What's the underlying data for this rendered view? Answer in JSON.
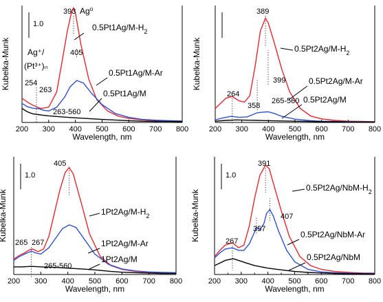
{
  "chart_data": [
    {
      "type": "line",
      "xlabel": "Wavelength, nm",
      "ylabel": "Kubelka-Munk",
      "xlim": [
        200,
        800
      ],
      "xticks": [
        "200",
        "300",
        "400",
        "500",
        "600",
        "700",
        "800"
      ],
      "scale_bar_label": "1.0",
      "scale_bar_value": 1.0,
      "ylim": [
        0,
        4.8
      ],
      "peak_labels": [
        "393",
        "405",
        "254",
        "263",
        "263-560"
      ],
      "annotations": [
        "Ag⁰",
        "Ag⁺/",
        "(Pt³⁺)ₙ"
      ],
      "series": [
        {
          "name": "0.5Pt1Ag/M-H2",
          "label": "0.5Pt1Ag/M-H",
          "label_sub": "2",
          "color": "#e8262e",
          "x": [
            200,
            220,
            240,
            254,
            270,
            300,
            330,
            350,
            370,
            385,
            393,
            400,
            420,
            450,
            480,
            520,
            560,
            600,
            650,
            700,
            750,
            800
          ],
          "y": [
            0.95,
            0.8,
            0.68,
            0.62,
            0.55,
            0.6,
            1.2,
            2.4,
            3.6,
            4.3,
            4.5,
            4.3,
            3.1,
            1.7,
            0.9,
            0.45,
            0.25,
            0.16,
            0.1,
            0.07,
            0.05,
            0.04
          ]
        },
        {
          "name": "0.5Pt1Ag/M-Ar",
          "label": "0.5Pt1Ag/M-Ar",
          "color": "#2d50d6",
          "x": [
            200,
            220,
            240,
            254,
            263,
            280,
            300,
            330,
            360,
            380,
            405,
            430,
            460,
            500,
            550,
            600,
            650,
            700,
            750,
            800
          ],
          "y": [
            0.75,
            0.62,
            0.56,
            0.55,
            0.54,
            0.48,
            0.45,
            0.6,
            1.0,
            1.4,
            1.65,
            1.55,
            1.15,
            0.7,
            0.35,
            0.2,
            0.12,
            0.09,
            0.07,
            0.06
          ]
        },
        {
          "name": "0.5Pt1Ag/M",
          "label": "0.5Pt1Ag/M",
          "color": "#000000",
          "x": [
            200,
            220,
            240,
            260,
            280,
            300,
            350,
            400,
            450,
            500,
            560,
            600,
            650,
            700,
            750,
            800
          ],
          "y": [
            0.55,
            0.42,
            0.34,
            0.31,
            0.28,
            0.26,
            0.22,
            0.18,
            0.15,
            0.12,
            0.09,
            0.07,
            0.05,
            0.04,
            0.04,
            0.03
          ]
        }
      ]
    },
    {
      "type": "line",
      "xlabel": "Wavelength, nm",
      "ylabel": "Kubelka-Munk",
      "xlim": [
        200,
        800
      ],
      "xticks": [
        "200",
        "300",
        "400",
        "500",
        "600",
        "700",
        "800"
      ],
      "scale_bar_label": "",
      "scale_bar_value": 1.0,
      "ylim": [
        0,
        4.8
      ],
      "peak_labels": [
        "389",
        "264",
        "358",
        "399",
        "265-560"
      ],
      "annotations": [],
      "series": [
        {
          "name": "0.5Pt2Ag/M-H2",
          "label": "0.5Pt2Ag/M-H",
          "label_sub": "2",
          "color": "#e8262e",
          "x": [
            200,
            220,
            240,
            264,
            290,
            310,
            330,
            350,
            370,
            389,
            400,
            420,
            450,
            480,
            520,
            560,
            600,
            650,
            700,
            750,
            800
          ],
          "y": [
            0.55,
            0.75,
            0.95,
            1.02,
            0.85,
            0.8,
            1.05,
            2.2,
            3.6,
            4.1,
            3.9,
            3.2,
            2.1,
            1.2,
            0.55,
            0.25,
            0.14,
            0.08,
            0.05,
            0.04,
            0.03
          ]
        },
        {
          "name": "0.5Pt2Ag/M-Ar",
          "label": "0.5Pt2Ag/M-Ar",
          "color": "#2d50d6",
          "x": [
            200,
            230,
            260,
            290,
            320,
            340,
            358,
            375,
            399,
            420,
            450,
            500,
            560,
            600,
            650,
            700,
            750,
            800
          ],
          "y": [
            0.1,
            0.18,
            0.24,
            0.2,
            0.22,
            0.3,
            0.38,
            0.4,
            0.42,
            0.36,
            0.24,
            0.13,
            0.07,
            0.05,
            0.04,
            0.03,
            0.03,
            0.02
          ]
        },
        {
          "name": "0.5Pt2Ag/M",
          "label": "0.5Pt2Ag/M",
          "color": "#000000",
          "x": [
            200,
            240,
            280,
            320,
            360,
            400,
            450,
            500,
            560,
            600,
            650,
            700,
            750,
            800
          ],
          "y": [
            0.05,
            0.08,
            0.1,
            0.09,
            0.08,
            0.07,
            0.06,
            0.05,
            0.04,
            0.03,
            0.03,
            0.02,
            0.02,
            0.02
          ]
        }
      ]
    },
    {
      "type": "line",
      "xlabel": "Wavelength, nm",
      "ylabel": "Kubelka-Munk",
      "xlim": [
        200,
        800
      ],
      "xticks": [
        "200",
        "300",
        "400",
        "500",
        "600",
        "700",
        "800"
      ],
      "scale_bar_label": "1.0",
      "scale_bar_value": 1.0,
      "ylim": [
        0,
        4.8
      ],
      "peak_labels": [
        "405",
        "265",
        "267",
        "265-560"
      ],
      "annotations": [],
      "series": [
        {
          "name": "1Pt2Ag/M-H2",
          "label": "1Pt2Ag/M-H",
          "label_sub": "2",
          "color": "#e8262e",
          "x": [
            200,
            220,
            240,
            260,
            270,
            290,
            310,
            330,
            350,
            370,
            390,
            405,
            420,
            450,
            480,
            520,
            560,
            600,
            650,
            700,
            750,
            800
          ],
          "y": [
            0.6,
            0.75,
            0.85,
            0.98,
            1.0,
            0.9,
            1.0,
            1.5,
            2.4,
            3.3,
            4.0,
            4.2,
            3.95,
            2.8,
            1.6,
            0.7,
            0.35,
            0.2,
            0.12,
            0.08,
            0.06,
            0.05
          ]
        },
        {
          "name": "1Pt2Ag/M-Ar",
          "label": "1Pt2Ag/M-Ar",
          "color": "#2d50d6",
          "x": [
            200,
            220,
            240,
            265,
            280,
            300,
            330,
            360,
            380,
            405,
            430,
            460,
            500,
            550,
            600,
            650,
            700,
            750,
            800
          ],
          "y": [
            0.55,
            0.7,
            0.8,
            0.92,
            0.85,
            0.8,
            1.05,
            1.5,
            1.8,
            1.95,
            1.85,
            1.4,
            0.8,
            0.4,
            0.22,
            0.14,
            0.1,
            0.08,
            0.07
          ]
        },
        {
          "name": "1Pt2Ag/M",
          "label": "1Pt2Ag/M",
          "color": "#000000",
          "x": [
            200,
            230,
            265,
            300,
            350,
            400,
            450,
            500,
            560,
            600,
            650,
            700,
            750,
            800
          ],
          "y": [
            0.3,
            0.3,
            0.32,
            0.3,
            0.28,
            0.25,
            0.22,
            0.18,
            0.12,
            0.09,
            0.07,
            0.05,
            0.04,
            0.04
          ]
        }
      ]
    },
    {
      "type": "line",
      "xlabel": "Wavelength, nm",
      "ylabel": "Kubelka-Munk",
      "xlim": [
        200,
        800
      ],
      "xticks": [
        "200",
        "250",
        "300",
        "350",
        "400",
        "450",
        "500",
        "550",
        "600",
        "650",
        "700",
        "750",
        "800"
      ],
      "scale_bar_label": "1.0",
      "scale_bar_value": 1.0,
      "ylim": [
        0,
        4.8
      ],
      "peak_labels": [
        "391",
        "407",
        "357",
        "267"
      ],
      "annotations": [],
      "series": [
        {
          "name": "0.5Pt2Ag/NbM-H2",
          "label": "0.5Pt2Ag/NbM-H",
          "label_sub": "2",
          "color": "#e8262e",
          "x": [
            200,
            220,
            240,
            267,
            290,
            310,
            330,
            350,
            370,
            391,
            405,
            420,
            450,
            480,
            520,
            560,
            600,
            650,
            700,
            750,
            800
          ],
          "y": [
            0.7,
            0.95,
            1.15,
            1.25,
            1.05,
            1.15,
            1.9,
            3.0,
            3.9,
            4.3,
            4.15,
            3.6,
            2.5,
            1.5,
            0.7,
            0.35,
            0.2,
            0.12,
            0.08,
            0.06,
            0.05
          ]
        },
        {
          "name": "0.5Pt2Ag/NbM-Ar",
          "label": "0.5Pt2Ag/NbM-Ar",
          "color": "#2d50d6",
          "x": [
            200,
            220,
            240,
            267,
            290,
            310,
            330,
            345,
            357,
            370,
            385,
            395,
            407,
            420,
            440,
            470,
            500,
            550,
            600,
            650,
            700,
            750,
            800
          ],
          "y": [
            0.65,
            0.85,
            1.0,
            1.05,
            0.95,
            0.95,
            1.2,
            1.55,
            1.85,
            1.75,
            2.0,
            2.4,
            2.55,
            2.3,
            1.7,
            0.95,
            0.5,
            0.2,
            0.1,
            0.07,
            0.05,
            0.04,
            0.04
          ]
        },
        {
          "name": "0.5Pt2Ag/NbM",
          "label": "0.5Pt2Ag/NbM",
          "color": "#000000",
          "x": [
            200,
            220,
            240,
            260,
            270,
            290,
            320,
            350,
            400,
            450,
            500,
            550,
            600,
            650,
            700,
            750,
            800
          ],
          "y": [
            0.35,
            0.45,
            0.55,
            0.6,
            0.62,
            0.55,
            0.45,
            0.35,
            0.25,
            0.18,
            0.12,
            0.08,
            0.06,
            0.04,
            0.03,
            0.03,
            0.02
          ]
        }
      ]
    }
  ]
}
